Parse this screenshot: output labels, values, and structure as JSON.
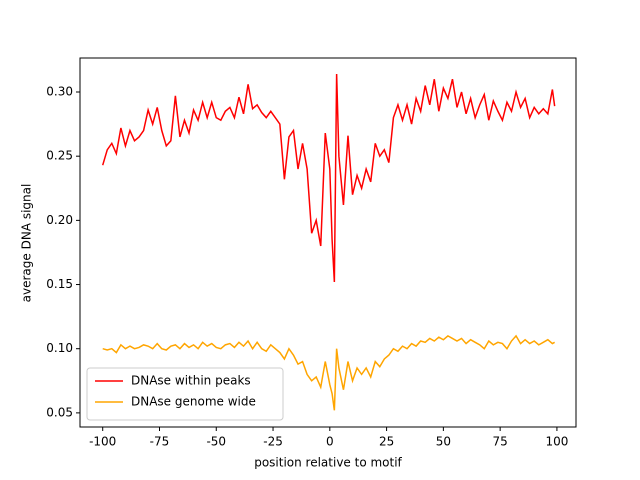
{
  "chart_data": {
    "type": "line",
    "xlabel": "position relative to motif",
    "ylabel": "average DNA signal",
    "x": [
      -100,
      -98,
      -96,
      -94,
      -92,
      -90,
      -88,
      -86,
      -84,
      -82,
      -80,
      -78,
      -76,
      -74,
      -72,
      -70,
      -68,
      -66,
      -64,
      -62,
      -60,
      -58,
      -56,
      -54,
      -52,
      -50,
      -48,
      -46,
      -44,
      -42,
      -40,
      -38,
      -36,
      -34,
      -32,
      -30,
      -28,
      -26,
      -24,
      -22,
      -20,
      -18,
      -16,
      -14,
      -12,
      -10,
      -8,
      -6,
      -4,
      -2,
      0,
      1,
      2,
      3,
      4,
      6,
      8,
      10,
      12,
      14,
      16,
      18,
      20,
      22,
      24,
      26,
      28,
      30,
      32,
      34,
      36,
      38,
      40,
      42,
      44,
      46,
      48,
      50,
      52,
      54,
      56,
      58,
      60,
      62,
      64,
      66,
      68,
      70,
      72,
      74,
      76,
      78,
      80,
      82,
      84,
      86,
      88,
      90,
      92,
      94,
      96,
      98,
      99
    ],
    "series": [
      {
        "name": "DNAse within peaks",
        "color": "#ff0000",
        "values": [
          0.243,
          0.255,
          0.26,
          0.252,
          0.272,
          0.258,
          0.27,
          0.262,
          0.265,
          0.27,
          0.286,
          0.275,
          0.288,
          0.27,
          0.258,
          0.262,
          0.297,
          0.265,
          0.278,
          0.268,
          0.286,
          0.278,
          0.292,
          0.28,
          0.292,
          0.28,
          0.278,
          0.285,
          0.288,
          0.28,
          0.296,
          0.283,
          0.306,
          0.287,
          0.29,
          0.284,
          0.28,
          0.285,
          0.28,
          0.275,
          0.232,
          0.265,
          0.27,
          0.24,
          0.26,
          0.24,
          0.19,
          0.2,
          0.18,
          0.268,
          0.24,
          0.185,
          0.152,
          0.314,
          0.25,
          0.212,
          0.266,
          0.22,
          0.235,
          0.225,
          0.24,
          0.23,
          0.26,
          0.25,
          0.255,
          0.245,
          0.28,
          0.29,
          0.278,
          0.29,
          0.275,
          0.295,
          0.285,
          0.305,
          0.29,
          0.31,
          0.285,
          0.303,
          0.295,
          0.31,
          0.288,
          0.3,
          0.283,
          0.295,
          0.28,
          0.29,
          0.298,
          0.278,
          0.293,
          0.285,
          0.278,
          0.292,
          0.285,
          0.3,
          0.288,
          0.295,
          0.28,
          0.288,
          0.283,
          0.287,
          0.283,
          0.302,
          0.289
        ]
      },
      {
        "name": "DNAse genome wide",
        "color": "#ffa500",
        "values": [
          0.1,
          0.099,
          0.1,
          0.097,
          0.103,
          0.1,
          0.102,
          0.1,
          0.101,
          0.103,
          0.102,
          0.1,
          0.104,
          0.1,
          0.099,
          0.102,
          0.103,
          0.1,
          0.104,
          0.101,
          0.103,
          0.1,
          0.105,
          0.102,
          0.104,
          0.101,
          0.1,
          0.103,
          0.104,
          0.101,
          0.105,
          0.102,
          0.106,
          0.1,
          0.105,
          0.1,
          0.098,
          0.103,
          0.1,
          0.097,
          0.092,
          0.1,
          0.095,
          0.088,
          0.09,
          0.08,
          0.075,
          0.078,
          0.07,
          0.09,
          0.072,
          0.065,
          0.052,
          0.1,
          0.085,
          0.068,
          0.09,
          0.075,
          0.085,
          0.08,
          0.085,
          0.078,
          0.09,
          0.086,
          0.092,
          0.095,
          0.1,
          0.098,
          0.102,
          0.1,
          0.104,
          0.102,
          0.106,
          0.105,
          0.108,
          0.106,
          0.109,
          0.107,
          0.11,
          0.108,
          0.106,
          0.108,
          0.104,
          0.107,
          0.105,
          0.103,
          0.1,
          0.106,
          0.103,
          0.105,
          0.104,
          0.1,
          0.106,
          0.11,
          0.104,
          0.107,
          0.104,
          0.106,
          0.103,
          0.105,
          0.107,
          0.104,
          0.105
        ]
      }
    ],
    "xlim": [
      -110,
      108.4
    ],
    "ylim": [
      0.039,
      0.3265
    ],
    "xticks": [
      -100,
      -75,
      -50,
      -25,
      0,
      25,
      50,
      75,
      100
    ],
    "yticks": [
      0.05,
      {
        "value": 0.1,
        "label": "0.10"
      },
      0.15,
      {
        "value": 0.2,
        "label": "0.20"
      },
      0.25,
      {
        "value": 0.3,
        "label": "0.30"
      }
    ],
    "legend": "lower left"
  }
}
